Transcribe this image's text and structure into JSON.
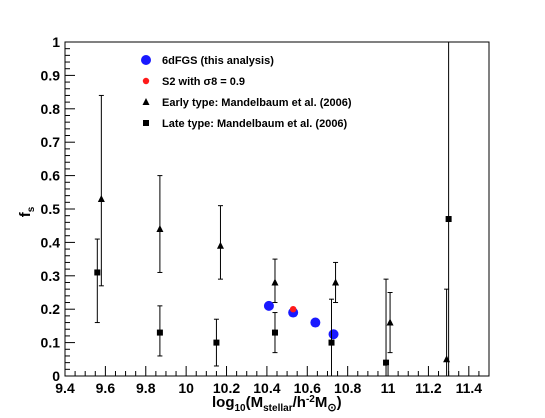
{
  "chart_data": {
    "type": "scatter",
    "title": "",
    "xlabel": "log10(Mstellar/h-2M⊙)",
    "ylabel": "fs",
    "xlim": [
      9.4,
      11.5
    ],
    "ylim": [
      0,
      1
    ],
    "x_ticks": [
      "9.4",
      "9.6",
      "9.8",
      "10",
      "10.2",
      "10.4",
      "10.6",
      "10.8",
      "11",
      "11.2",
      "11.4"
    ],
    "y_ticks": [
      "0",
      "0.1",
      "0.2",
      "0.3",
      "0.4",
      "0.5",
      "0.6",
      "0.7",
      "0.8",
      "0.9",
      "1"
    ],
    "legend_position": "top-left",
    "grid": false,
    "series": [
      {
        "name": "6dFGS (this analysis)",
        "marker": "circle",
        "color": "#1919ff",
        "points": [
          {
            "x": 10.41,
            "y": 0.21
          },
          {
            "x": 10.53,
            "y": 0.19
          },
          {
            "x": 10.64,
            "y": 0.16
          },
          {
            "x": 10.73,
            "y": 0.125
          }
        ]
      },
      {
        "name": "S2 with σ8 = 0.9",
        "marker": "small-circle",
        "color": "#ff1a1a",
        "points": [
          {
            "x": 10.53,
            "y": 0.2
          }
        ]
      },
      {
        "name": "Early type: Mandelbaum et al. (2006)",
        "marker": "triangle",
        "color": "#000000",
        "points": [
          {
            "x": 9.58,
            "y": 0.53,
            "low": 0.27,
            "high": 0.84
          },
          {
            "x": 9.87,
            "y": 0.44,
            "low": 0.31,
            "high": 0.6
          },
          {
            "x": 10.17,
            "y": 0.39,
            "low": 0.29,
            "high": 0.51
          },
          {
            "x": 10.44,
            "y": 0.28,
            "low": 0.22,
            "high": 0.35
          },
          {
            "x": 10.74,
            "y": 0.28,
            "low": 0.22,
            "high": 0.34
          },
          {
            "x": 11.01,
            "y": 0.16,
            "low": 0.07,
            "high": 0.25
          },
          {
            "x": 11.29,
            "y": 0.05,
            "low": 0.0,
            "high": 0.26
          }
        ]
      },
      {
        "name": "Late type: Mandelbaum et al. (2006)",
        "marker": "square",
        "color": "#000000",
        "points": [
          {
            "x": 9.56,
            "y": 0.31,
            "low": 0.16,
            "high": 0.41
          },
          {
            "x": 9.87,
            "y": 0.13,
            "low": 0.06,
            "high": 0.21
          },
          {
            "x": 10.15,
            "y": 0.1,
            "low": 0.03,
            "high": 0.17
          },
          {
            "x": 10.44,
            "y": 0.13,
            "low": 0.07,
            "high": 0.19
          },
          {
            "x": 10.72,
            "y": 0.1,
            "low": 0.0,
            "high": 0.23
          },
          {
            "x": 10.99,
            "y": 0.04,
            "low": 0.0,
            "high": 0.29
          },
          {
            "x": 11.3,
            "y": 0.47,
            "low": 0.0,
            "high": 1.0
          }
        ]
      }
    ]
  }
}
